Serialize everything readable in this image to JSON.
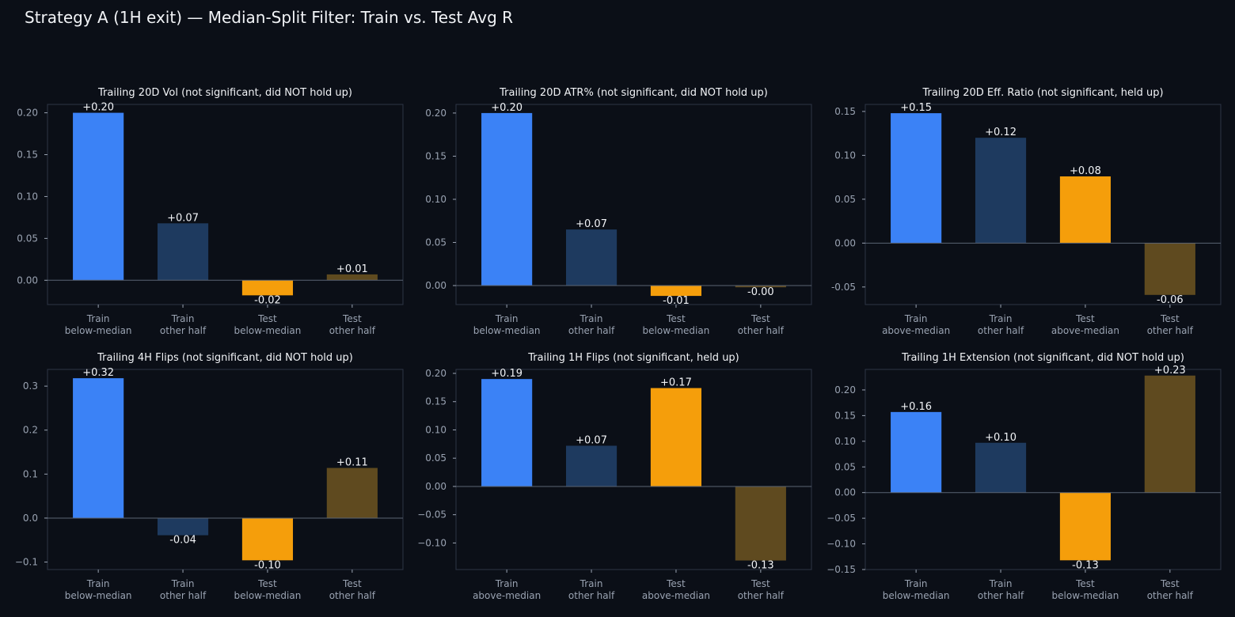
{
  "title": "Strategy A (1H exit) — Median-Split Filter: Train vs. Test Avg R",
  "colors": {
    "background": "#0b0f17",
    "train_primary": "#3b82f6",
    "train_other": "#1e3a5f",
    "test_primary": "#f59e0b",
    "test_other": "#5f4a1f",
    "axis": "#2e3646",
    "zero_line": "#5b6473",
    "tick_label": "#9aa3b2",
    "text": "#f1f3f6"
  },
  "chart_data": [
    {
      "type": "bar",
      "title": "Trailing 20D Vol (not significant, did NOT hold up)",
      "categories": [
        "Train\nbelow-median",
        "Train\nother half",
        "Test\nbelow-median",
        "Test\nother half"
      ],
      "values": [
        0.2,
        0.068,
        -0.018,
        0.007
      ],
      "labels": [
        "+0.20",
        "+0.07",
        "-0.02",
        "+0.01"
      ],
      "ylim": [
        -0.029,
        0.21
      ],
      "yticks": [
        0.0,
        0.05,
        0.1,
        0.15,
        0.2
      ],
      "ytick_labels": [
        "0.00",
        "0.05",
        "0.10",
        "0.15",
        "0.20"
      ],
      "xlabel": "",
      "ylabel": "",
      "grid": false
    },
    {
      "type": "bar",
      "title": "Trailing 20D ATR% (not significant, did NOT hold up)",
      "categories": [
        "Train\nbelow-median",
        "Train\nother half",
        "Test\nbelow-median",
        "Test\nother half"
      ],
      "values": [
        0.2,
        0.065,
        -0.012,
        -0.002
      ],
      "labels": [
        "+0.20",
        "+0.07",
        "-0.01",
        "-0.00"
      ],
      "ylim": [
        -0.022,
        0.21
      ],
      "yticks": [
        0.0,
        0.05,
        0.1,
        0.15,
        0.2
      ],
      "ytick_labels": [
        "0.00",
        "0.05",
        "0.10",
        "0.15",
        "0.20"
      ],
      "xlabel": "",
      "ylabel": "",
      "grid": false
    },
    {
      "type": "bar",
      "title": "Trailing 20D Eff. Ratio (not significant, held up)",
      "categories": [
        "Train\nabove-median",
        "Train\nother half",
        "Test\nabove-median",
        "Test\nother half"
      ],
      "values": [
        0.148,
        0.12,
        0.076,
        -0.059
      ],
      "labels": [
        "+0.15",
        "+0.12",
        "+0.08",
        "-0.06"
      ],
      "ylim": [
        -0.07,
        0.158
      ],
      "yticks": [
        -0.05,
        0.0,
        0.05,
        0.1,
        0.15
      ],
      "ytick_labels": [
        "-0.05",
        "0.00",
        "0.05",
        "0.10",
        "0.15"
      ],
      "xlabel": "",
      "ylabel": "",
      "grid": false
    },
    {
      "type": "bar",
      "title": "Trailing 4H Flips (not significant, did NOT hold up)",
      "categories": [
        "Train\nbelow-median",
        "Train\nother half",
        "Test\nbelow-median",
        "Test\nother half"
      ],
      "values": [
        0.318,
        -0.039,
        -0.096,
        0.114
      ],
      "labels": [
        "+0.32",
        "-0.04",
        "-0.10",
        "+0.11"
      ],
      "ylim": [
        -0.117,
        0.338
      ],
      "yticks": [
        -0.1,
        0.0,
        0.1,
        0.2,
        0.3
      ],
      "ytick_labels": [
        "−0.1",
        "0.0",
        "0.1",
        "0.2",
        "0.3"
      ],
      "xlabel": "",
      "ylabel": "",
      "grid": false
    },
    {
      "type": "bar",
      "title": "Trailing 1H Flips (not significant, held up)",
      "categories": [
        "Train\nabove-median",
        "Train\nother half",
        "Test\nabove-median",
        "Test\nother half"
      ],
      "values": [
        0.19,
        0.072,
        0.174,
        -0.131
      ],
      "labels": [
        "+0.19",
        "+0.07",
        "+0.17",
        "-0.13"
      ],
      "ylim": [
        -0.147,
        0.207
      ],
      "yticks": [
        -0.1,
        -0.05,
        0.0,
        0.05,
        0.1,
        0.15,
        0.2
      ],
      "ytick_labels": [
        "−0.10",
        "−0.05",
        "0.00",
        "0.05",
        "0.10",
        "0.15",
        "0.20"
      ],
      "xlabel": "",
      "ylabel": "",
      "grid": false
    },
    {
      "type": "bar",
      "title": "Trailing 1H Extension (not significant, did NOT hold up)",
      "categories": [
        "Train\nbelow-median",
        "Train\nother half",
        "Test\nbelow-median",
        "Test\nother half"
      ],
      "values": [
        0.157,
        0.097,
        -0.132,
        0.228
      ],
      "labels": [
        "+0.16",
        "+0.10",
        "-0.13",
        "+0.23"
      ],
      "ylim": [
        -0.15,
        0.24
      ],
      "yticks": [
        -0.15,
        -0.1,
        -0.05,
        0.0,
        0.05,
        0.1,
        0.15,
        0.2
      ],
      "ytick_labels": [
        "−0.15",
        "−0.10",
        "−0.05",
        "0.00",
        "0.05",
        "0.10",
        "0.15",
        "0.20"
      ],
      "xlabel": "",
      "ylabel": "",
      "grid": false
    }
  ]
}
